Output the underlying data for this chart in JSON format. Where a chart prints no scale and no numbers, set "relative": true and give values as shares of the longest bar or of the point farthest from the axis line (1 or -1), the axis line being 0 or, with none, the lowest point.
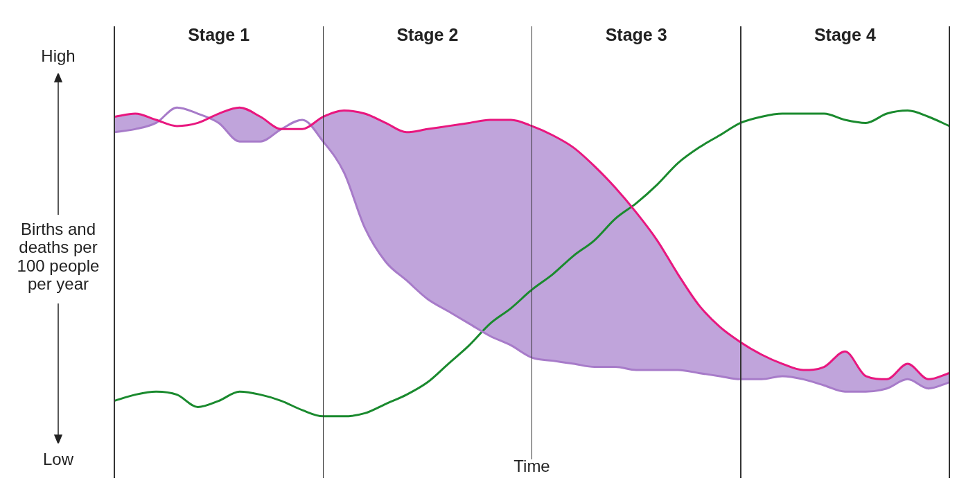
{
  "chart_data": {
    "type": "line",
    "relative": true,
    "xlabel": "Time",
    "ylabel": "Births and deaths per 100 people per year",
    "annotations": [
      "High",
      "Low",
      "Stage 1",
      "Stage 2",
      "Stage 3",
      "Stage 4"
    ],
    "categories": [
      null,
      null,
      null,
      null,
      null,
      null,
      null,
      null,
      null,
      null,
      null,
      null,
      null,
      null,
      null,
      null,
      null,
      null,
      null,
      null,
      null,
      null,
      null,
      null,
      null,
      null,
      null,
      null,
      null,
      null,
      null,
      null,
      null,
      null,
      null,
      null,
      null,
      null,
      null,
      null,
      null
    ],
    "series": [
      {
        "type": "line",
        "color": "#e8177f",
        "values": [
          0.97,
          0.98,
          0.96,
          0.94,
          0.95,
          0.98,
          1.0,
          0.97,
          0.93,
          0.93,
          0.97,
          0.99,
          0.98,
          0.95,
          0.92,
          0.93,
          0.94,
          0.95,
          0.96,
          0.96,
          0.94,
          0.91,
          0.87,
          0.81,
          0.74,
          0.66,
          0.57,
          0.46,
          0.36,
          0.29,
          0.24,
          0.2,
          0.17,
          0.15,
          0.16,
          0.21,
          0.13,
          0.12,
          0.17,
          0.12,
          0.14
        ]
      },
      {
        "type": "line",
        "color": "#a77bc9",
        "values": [
          0.92,
          0.93,
          0.95,
          1.0,
          0.98,
          0.95,
          0.89,
          0.89,
          0.93,
          0.96,
          0.89,
          0.79,
          0.61,
          0.5,
          0.44,
          0.38,
          0.34,
          0.3,
          0.26,
          0.23,
          0.19,
          0.18,
          0.17,
          0.16,
          0.16,
          0.15,
          0.15,
          0.15,
          0.14,
          0.13,
          0.12,
          0.12,
          0.13,
          0.12,
          0.1,
          0.08,
          0.08,
          0.09,
          0.12,
          0.09,
          0.11
        ]
      },
      {
        "type": "line",
        "color": "#1a8a2e",
        "values": [
          0.05,
          0.07,
          0.08,
          0.07,
          0.03,
          0.05,
          0.08,
          0.07,
          0.05,
          0.02,
          0.0,
          0.0,
          0.01,
          0.04,
          0.07,
          0.11,
          0.17,
          0.23,
          0.3,
          0.35,
          0.41,
          0.46,
          0.52,
          0.57,
          0.64,
          0.69,
          0.75,
          0.82,
          0.87,
          0.91,
          0.95,
          0.97,
          0.98,
          0.98,
          0.98,
          0.96,
          0.95,
          0.98,
          0.99,
          0.97,
          0.94
        ]
      }
    ]
  }
}
